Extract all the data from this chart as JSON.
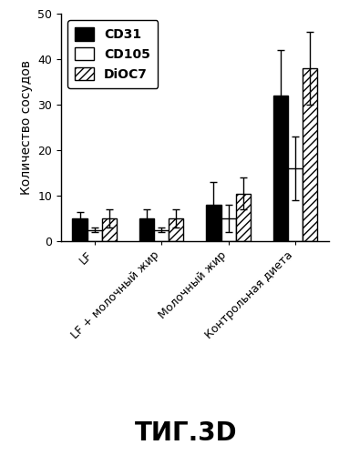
{
  "categories": [
    "LF",
    "LF + молочный жир",
    "Молочный жир",
    "Контрольная диета"
  ],
  "series": [
    {
      "label": "CD31",
      "values": [
        5.0,
        5.0,
        8.0,
        32.0
      ],
      "errors": [
        1.5,
        2.0,
        5.0,
        10.0
      ],
      "color": "#000000",
      "hatch": null
    },
    {
      "label": "CD105",
      "values": [
        2.5,
        2.5,
        5.0,
        16.0
      ],
      "errors": [
        0.5,
        0.5,
        3.0,
        7.0
      ],
      "color": "#ffffff",
      "hatch": null
    },
    {
      "label": "DiOC7",
      "values": [
        5.0,
        5.0,
        10.5,
        38.0
      ],
      "errors": [
        2.0,
        2.0,
        3.5,
        8.0
      ],
      "color": "#ffffff",
      "hatch": "////"
    }
  ],
  "ylabel": "Количество сосудов",
  "ylim": [
    0,
    50
  ],
  "yticks": [
    0,
    10,
    20,
    30,
    40,
    50
  ],
  "title_bottom": "ΤИГ.3D",
  "bar_width": 0.22,
  "background_color": "#ffffff",
  "legend_fontsize": 10,
  "tick_fontsize": 9,
  "ylabel_fontsize": 10,
  "title_fontsize": 20
}
